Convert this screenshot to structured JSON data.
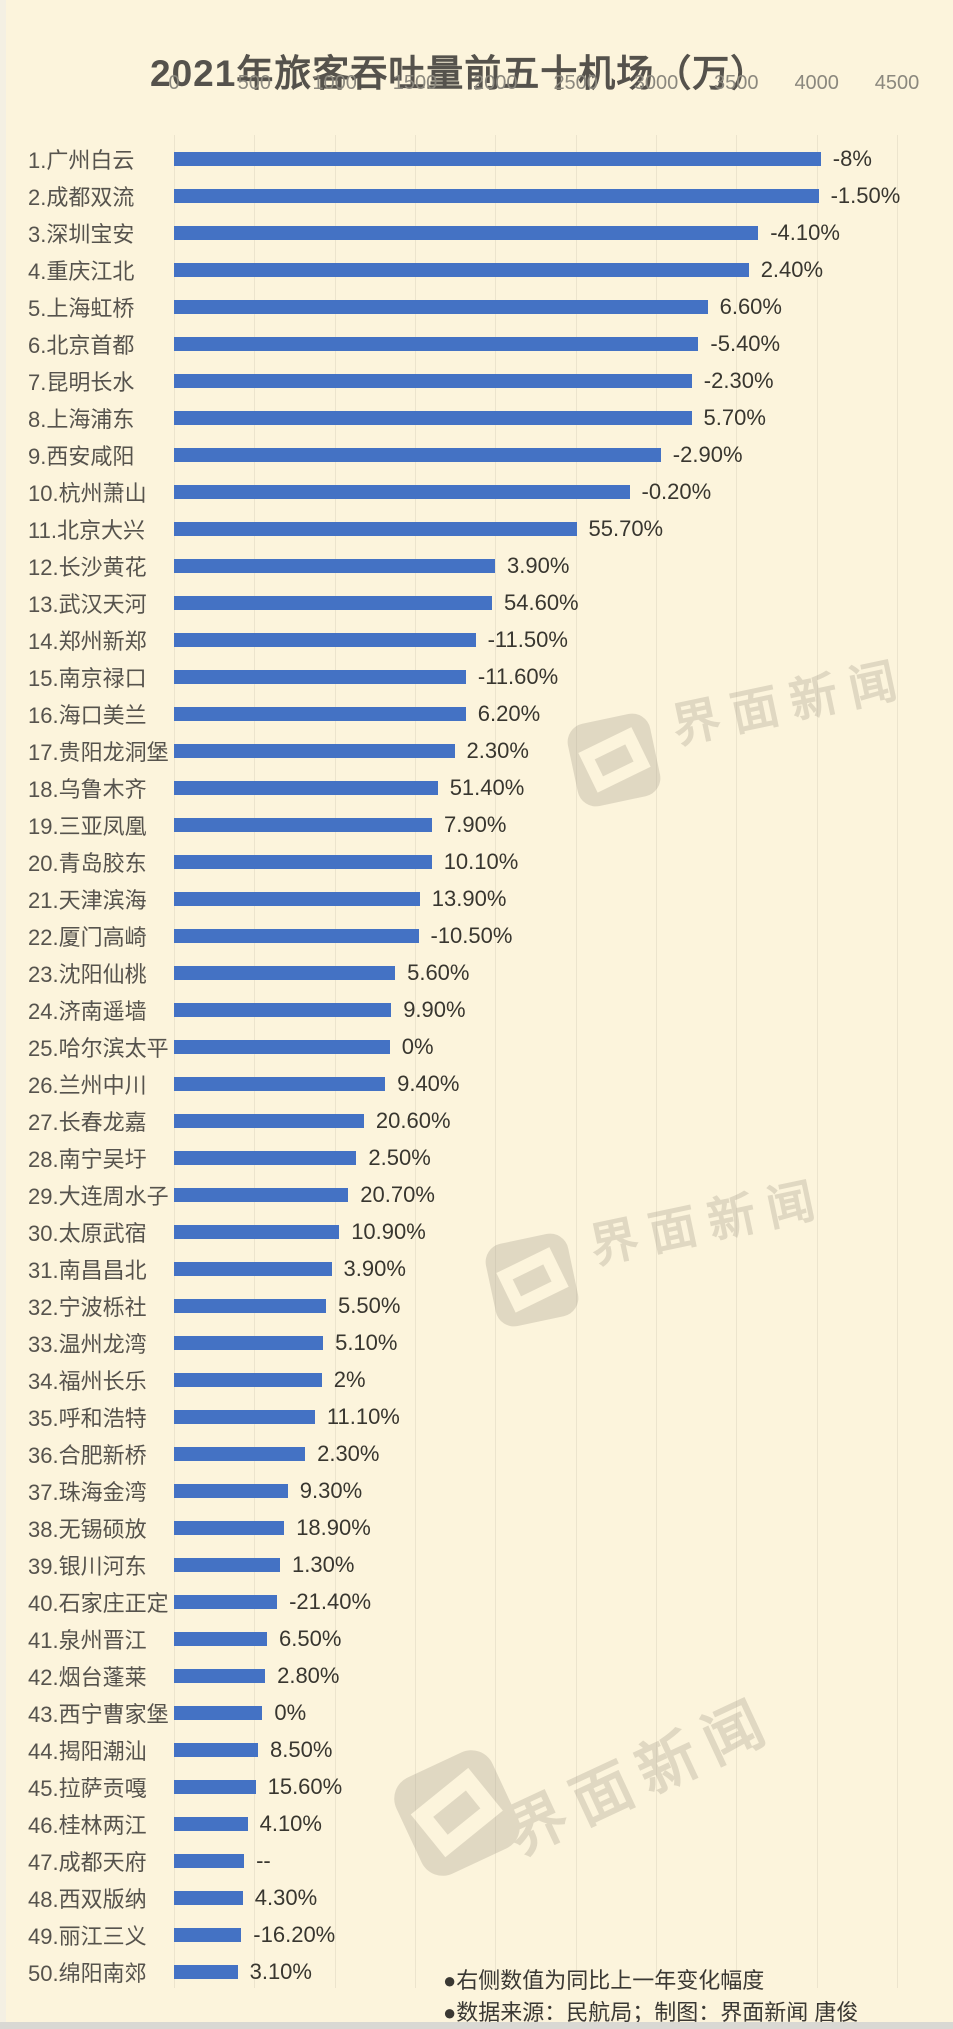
{
  "title": "2021年旅客吞吐量前五十机场（万）",
  "watermark_text": "界面新闻",
  "footnotes": [
    "●右侧数值为同比上一年变化幅度",
    "●数据来源：民航局；制图：界面新闻 唐俊"
  ],
  "colors": {
    "background": "#fcf4dc",
    "bar": "#4472c4",
    "title_text": "#55524c",
    "axis_text": "#8b887e",
    "row_label_text": "#56534d",
    "pct_label_text": "#38362f",
    "gridline": "#ece4cd",
    "watermark": "#a89f8d"
  },
  "chart_data": {
    "type": "bar",
    "orientation": "horizontal",
    "title": "2021年旅客吞吐量前五十机场（万）",
    "value_unit": "万人次",
    "xlim": [
      0,
      4500
    ],
    "x_ticks": [
      "0",
      "500",
      "1000",
      "1500",
      "2000",
      "2500",
      "3000",
      "3500",
      "4000",
      "4500"
    ],
    "grid": true,
    "bar_color": "#4472c4",
    "categories": [
      "1.广州白云",
      "2.成都双流",
      "3.深圳宝安",
      "4.重庆江北",
      "5.上海虹桥",
      "6.北京首都",
      "7.昆明长水",
      "8.上海浦东",
      "9.西安咸阳",
      "10.杭州萧山",
      "11.北京大兴",
      "12.长沙黄花",
      "13.武汉天河",
      "14.郑州新郑",
      "15.南京禄口",
      "16.海口美兰",
      "17.贵阳龙洞堡",
      "18.乌鲁木齐",
      "19.三亚凤凰",
      "20.青岛胶东",
      "21.天津滨海",
      "22.厦门高崎",
      "23.沈阳仙桃",
      "24.济南遥墙",
      "25.哈尔滨太平",
      "26.兰州中川",
      "27.长春龙嘉",
      "28.南宁吴圩",
      "29.大连周水子",
      "30.太原武宿",
      "31.南昌昌北",
      "32.宁波栎社",
      "33.温州龙湾",
      "34.福州长乐",
      "35.呼和浩特",
      "36.合肥新桥",
      "37.珠海金湾",
      "38.无锡硕放",
      "39.银川河东",
      "40.石家庄正定",
      "41.泉州晋江",
      "42.烟台蓬莱",
      "43.西宁曹家堡",
      "44.揭阳潮汕",
      "45.拉萨贡嘎",
      "46.桂林两江",
      "47.成都天府",
      "48.西双版纳",
      "49.丽江三义",
      "50.绵阳南郊"
    ],
    "values": [
      4026,
      4012,
      3636,
      3577,
      3321,
      3264,
      3223,
      3221,
      3030,
      2835,
      2505,
      1998,
      1979,
      1877,
      1817,
      1816,
      1746,
      1641,
      1606,
      1604,
      1530,
      1522,
      1376,
      1352,
      1343,
      1314,
      1182,
      1135,
      1085,
      1028,
      980,
      946,
      928,
      920,
      877,
      816,
      708,
      686,
      660,
      642,
      579,
      567,
      550,
      523,
      508,
      458,
      436,
      428,
      419,
      396
    ],
    "change_labels": [
      "-8%",
      "-1.50%",
      "-4.10%",
      "2.40%",
      "6.60%",
      "-5.40%",
      "-2.30%",
      "5.70%",
      "-2.90%",
      "-0.20%",
      "55.70%",
      "3.90%",
      "54.60%",
      "-11.50%",
      "-11.60%",
      "6.20%",
      "2.30%",
      "51.40%",
      "7.90%",
      "10.10%",
      "13.90%",
      "-10.50%",
      "5.60%",
      "9.90%",
      "0%",
      "9.40%",
      "20.60%",
      "2.50%",
      "20.70%",
      "10.90%",
      "3.90%",
      "5.50%",
      "5.10%",
      "2%",
      "11.10%",
      "2.30%",
      "9.30%",
      "18.90%",
      "1.30%",
      "-21.40%",
      "6.50%",
      "2.80%",
      "0%",
      "8.50%",
      "15.60%",
      "4.10%",
      "--",
      "4.30%",
      "-16.20%",
      "3.10%"
    ]
  }
}
